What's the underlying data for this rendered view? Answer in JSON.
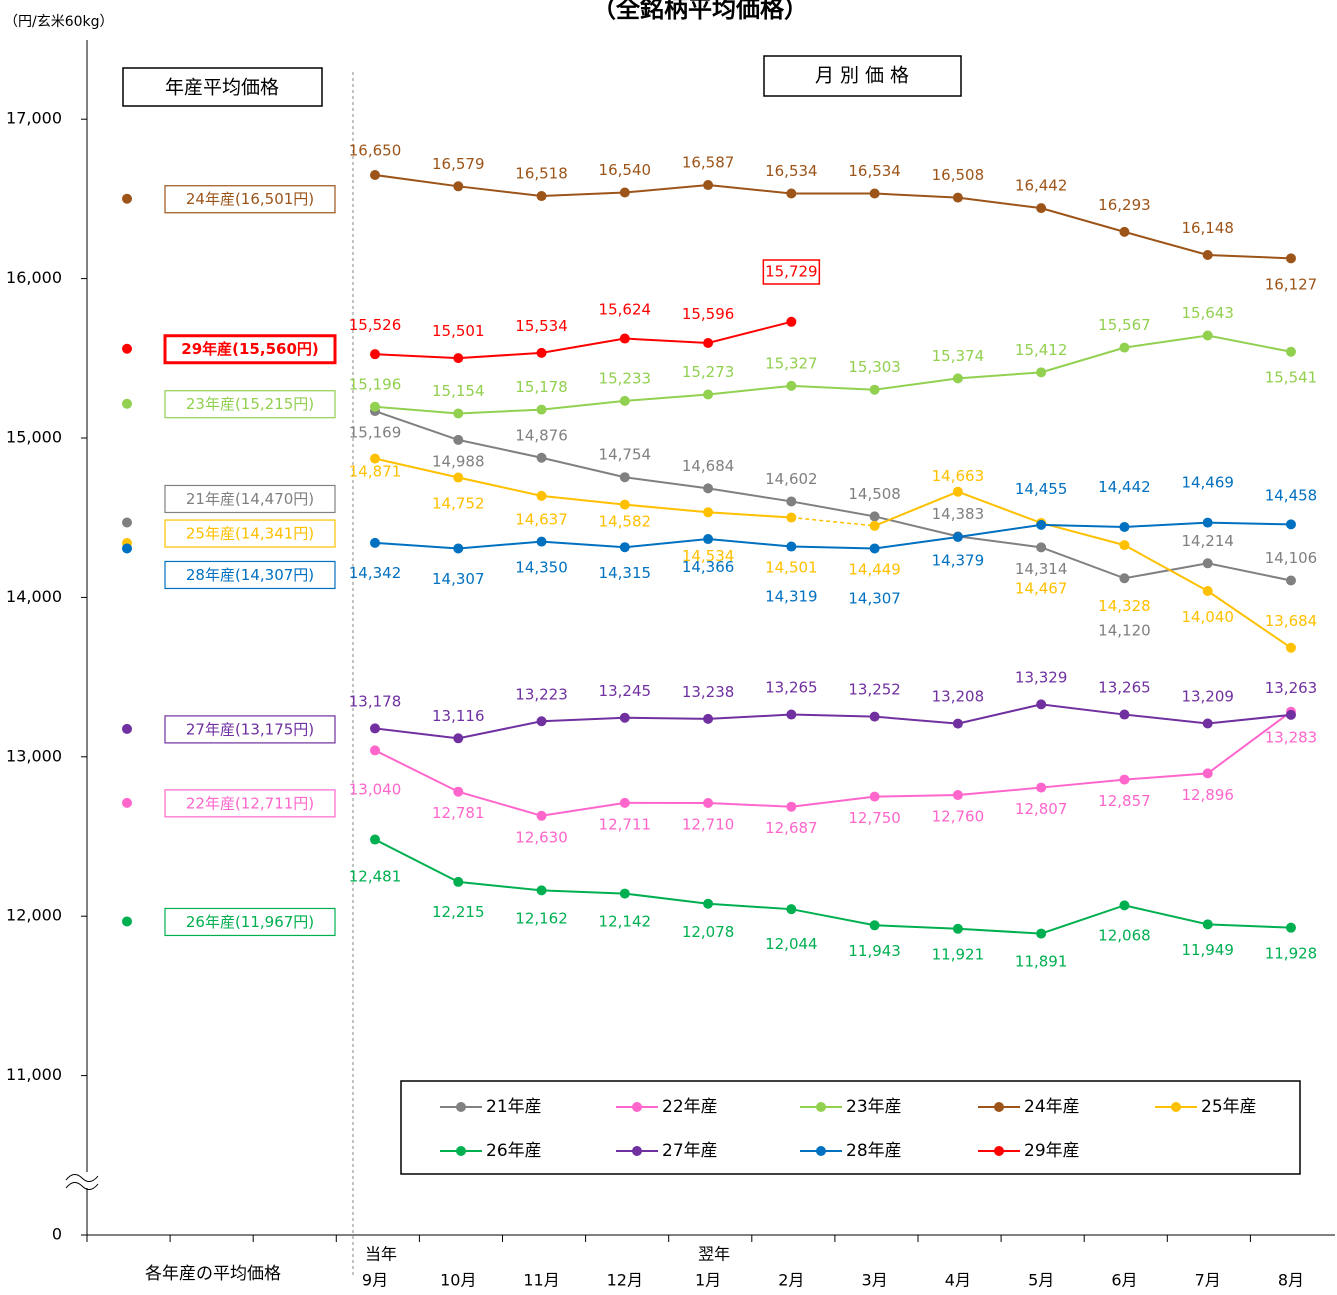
{
  "chart_data": {
    "type": "line",
    "title": "（全銘柄平均価格）",
    "y_unit": "（円/玄米60kg）",
    "left_header": "年産平均価格",
    "right_header": "月 別 価 格",
    "average_axis_label": "各年産の平均価格",
    "year_row": [
      "当年",
      null,
      null,
      null,
      "翌年",
      null,
      null,
      null,
      null,
      null,
      null,
      null
    ],
    "categories": [
      "9月",
      "10月",
      "11月",
      "12月",
      "1月",
      "2月",
      "3月",
      "4月",
      "5月",
      "6月",
      "7月",
      "8月"
    ],
    "ylim": [
      0,
      17500
    ],
    "axis_break": [
      0,
      10000
    ],
    "yticks": [
      0,
      {
        "value": 11000,
        "label": "11,000"
      },
      {
        "value": 12000,
        "label": "12,000"
      },
      {
        "value": 13000,
        "label": "13,000"
      },
      {
        "value": 14000,
        "label": "14,000"
      },
      {
        "value": 15000,
        "label": "15,000"
      },
      {
        "value": 16000,
        "label": "16,000"
      },
      {
        "value": 17000,
        "label": "17,000"
      }
    ],
    "grid": false,
    "series": [
      {
        "name": "21年産",
        "color": "#808080",
        "average": 14470,
        "average_label": "21年産(14,470円)",
        "values": [
          15169,
          14988,
          14876,
          14754,
          14684,
          14602,
          14508,
          14383,
          14314,
          14120,
          14214,
          14106
        ],
        "value_labels": [
          "15,169",
          "14,988",
          "14,876",
          "14,754",
          "14,684",
          "14,602",
          "14,508",
          "14,383",
          "14,314",
          "14,120",
          "14,214",
          "14,106"
        ]
      },
      {
        "name": "22年産",
        "color": "#ff66cc",
        "average": 12711,
        "average_label": "22年産(12,711円)",
        "values": [
          13040,
          12781,
          12630,
          12711,
          12710,
          12687,
          12750,
          12760,
          12807,
          12857,
          12896,
          13283
        ],
        "value_labels": [
          "13,040",
          "12,781",
          "12,630",
          "12,711",
          "12,710",
          "12,687",
          "12,750",
          "12,760",
          "12,807",
          "12,857",
          "12,896",
          "13,283"
        ]
      },
      {
        "name": "23年産",
        "color": "#92d050",
        "average": 15215,
        "average_label": "23年産(15,215円)",
        "values": [
          15196,
          15154,
          15178,
          15233,
          15273,
          15327,
          15303,
          15374,
          15412,
          15567,
          15643,
          15541
        ],
        "value_labels": [
          "15,196",
          "15,154",
          "15,178",
          "15,233",
          "15,273",
          "15,327",
          "15,303",
          "15,374",
          "15,412",
          "15,567",
          "15,643",
          "15,541"
        ]
      },
      {
        "name": "24年産",
        "color": "#9c5418",
        "average": 16501,
        "average_label": "24年産(16,501円)",
        "values": [
          16650,
          16579,
          16518,
          16540,
          16587,
          16534,
          16534,
          16508,
          16442,
          16293,
          16148,
          16127
        ],
        "value_labels": [
          "16,650",
          "16,579",
          "16,518",
          "16,540",
          "16,587",
          "16,534",
          "16,534",
          "16,508",
          "16,442",
          "16,293",
          "16,148",
          "16,127"
        ]
      },
      {
        "name": "25年産",
        "color": "#ffc000",
        "average": 14341,
        "average_label": "25年産(14,341円)",
        "dashed_segments": [
          5
        ],
        "values": [
          14871,
          14752,
          14637,
          14582,
          14534,
          14501,
          14449,
          14663,
          14467,
          14328,
          14040,
          13684
        ],
        "value_labels": [
          "14,871",
          "14,752",
          "14,637",
          "14,582",
          "14,534",
          "14,501",
          "14,449",
          "14,663",
          "14,467",
          "14,328",
          "14,040",
          "13,684"
        ]
      },
      {
        "name": "26年産",
        "color": "#00b050",
        "average": 11967,
        "average_label": "26年産(11,967円)",
        "values": [
          12481,
          12215,
          12162,
          12142,
          12078,
          12044,
          11943,
          11921,
          11891,
          12068,
          11949,
          11928
        ],
        "value_labels": [
          "12,481",
          "12,215",
          "12,162",
          "12,142",
          "12,078",
          "12,044",
          "11,943",
          "11,921",
          "11,891",
          "12,068",
          "11,949",
          "11,928"
        ]
      },
      {
        "name": "27年産",
        "color": "#7030a0",
        "average": 13175,
        "average_label": "27年産(13,175円)",
        "values": [
          13178,
          13116,
          13223,
          13245,
          13238,
          13265,
          13252,
          13208,
          13329,
          13265,
          13209,
          13263
        ],
        "value_labels": [
          "13,178",
          "13,116",
          "13,223",
          "13,245",
          "13,238",
          "13,265",
          "13,252",
          "13,208",
          "13,329",
          "13,265",
          "13,209",
          "13,263"
        ]
      },
      {
        "name": "28年産",
        "color": "#0070c0",
        "average": 14307,
        "average_label": "28年産(14,307円)",
        "values": [
          14342,
          14307,
          14350,
          14315,
          14366,
          14319,
          14307,
          14379,
          14455,
          14442,
          14469,
          14458
        ],
        "value_labels": [
          "14,342",
          "14,307",
          "14,350",
          "14,315",
          "14,366",
          "14,319",
          "14,307",
          "14,379",
          "14,455",
          "14,442",
          "14,469",
          "14,458"
        ]
      },
      {
        "name": "29年産",
        "color": "#ff0000",
        "average": 15560,
        "average_label": "29年産(15,560円)",
        "highlight": true,
        "values": [
          15526,
          15501,
          15534,
          15624,
          15596,
          15729,
          null,
          null,
          null,
          null,
          null,
          null
        ],
        "value_labels": [
          "15,526",
          "15,501",
          "15,534",
          "15,624",
          "15,596",
          "15,729",
          null,
          null,
          null,
          null,
          null,
          null
        ]
      }
    ]
  }
}
